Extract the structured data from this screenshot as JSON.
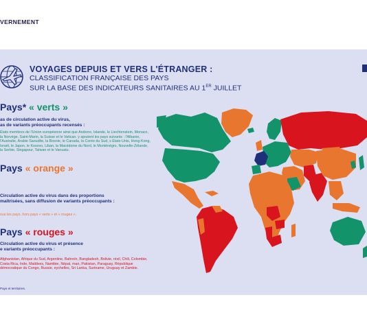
{
  "header": {
    "label": "VERNEMENT"
  },
  "title": {
    "main": "VOYAGES DEPUIS ET VERS L'ÉTRANGER :",
    "sub1": "CLASSIFICATION FRANÇAISE DES PAYS",
    "sub2": "SUR LA BASE DES INDICATEURS SANITAIRES AU 1",
    "sup": "ER",
    "sub2_end": " JUILLET"
  },
  "green": {
    "prefix": "Pays* ",
    "label": "« verts »",
    "line1": "as de circulation active du virus,",
    "line2": "as de variants préoccupants recensés :",
    "body": "États membres de l'Union européenne ainsi que Andorre, Islande, le Liechtenstein, Monaco, la Norvège, Saint-Marin, la Suisse et le Vatican. y ajoutent les pays suivants : l'Albanie, l'Australie, Arabie Saoudite, la Bosnie, le Canada, la Corée du Sud, s États-Unis, Hong-Kong, Israël, le Japon, le Kosovo, Liban, la Macédoine du Nord, le Monténégro, Nouvelle-Zélande, la Serbie, Singapour, Taïwan et le Vanuatu."
  },
  "orange": {
    "prefix": "Pays ",
    "label": "« orange »",
    "line1": "Circulation active du virus dans des proportions",
    "line2": "maîtrisées, sans diffusion de variants préoccupants :",
    "body": "ous les pays, hors pays « verts » et « rouges »."
  },
  "red": {
    "prefix": "Pays ",
    "label": "« rouges »",
    "line1": "Circulation active du virus et présence",
    "line2": "e variants préoccupants :",
    "body": "Afghanistan, Afrique du Sud, Argentine, Bahreïn, Bangladesh, Bolivie, résil, Chili, Colombie, Costa Rica, Inde, Maldives, Namibie, Népal, man, Pakistan, Paraguay, République démocratique du Congo, Russie, eychelles, Sri Lanka, Suriname, Uruguay et Zambie."
  },
  "footnote": "Pays et territoires.",
  "colors": {
    "green": "#12936a",
    "orange": "#e9762f",
    "red": "#d8141e",
    "france": "#1f2f7a",
    "panel": "#dcdff2",
    "navy": "#1f2f7a"
  },
  "icons": {
    "emblem": "globe-airplane-icon"
  }
}
